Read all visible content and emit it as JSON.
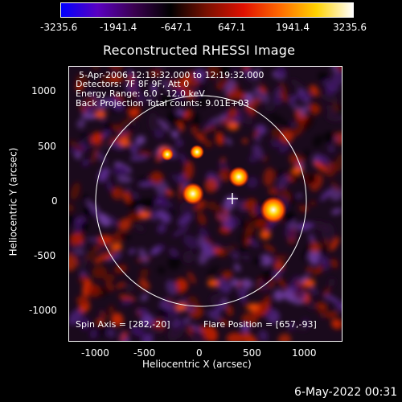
{
  "colorbar": {
    "tick_labels": [
      "-3235.6",
      "-1941.4",
      "-647.1",
      "647.1",
      "1941.4",
      "3235.6"
    ],
    "stops": [
      "#0000ff",
      "#5a00c0",
      "#3a0050",
      "#000000",
      "#7a1000",
      "#e01000",
      "#ff6a00",
      "#ffd200",
      "#ffffff"
    ]
  },
  "plot": {
    "title": "Reconstructed RHESSI Image",
    "info_lines": [
      "5-Apr-2006 12:13:32.000 to 12:19:32.000",
      "Detectors: 7F 8F 9F, Att 0",
      "Energy Range: 6.0 - 12.0 keV",
      "Back Projection    Total counts: 9.01E+03"
    ],
    "spin_axis": "Spin Axis = [282,-20]",
    "flare_position": "Flare Position = [657,-93]",
    "xlabel": "Heliocentric X (arcsec)",
    "ylabel": "Heliocentric Y (arcsec)",
    "xticks": [
      "-1000",
      "-500",
      "0",
      "500",
      "1000"
    ],
    "yticks": [
      "1000",
      "500",
      "0",
      "-500",
      "-1000"
    ],
    "xlim": [
      -1280,
      1250
    ],
    "ylim": [
      -1250,
      1230
    ]
  },
  "footer": {
    "date": "6-May-2022 00:31"
  }
}
